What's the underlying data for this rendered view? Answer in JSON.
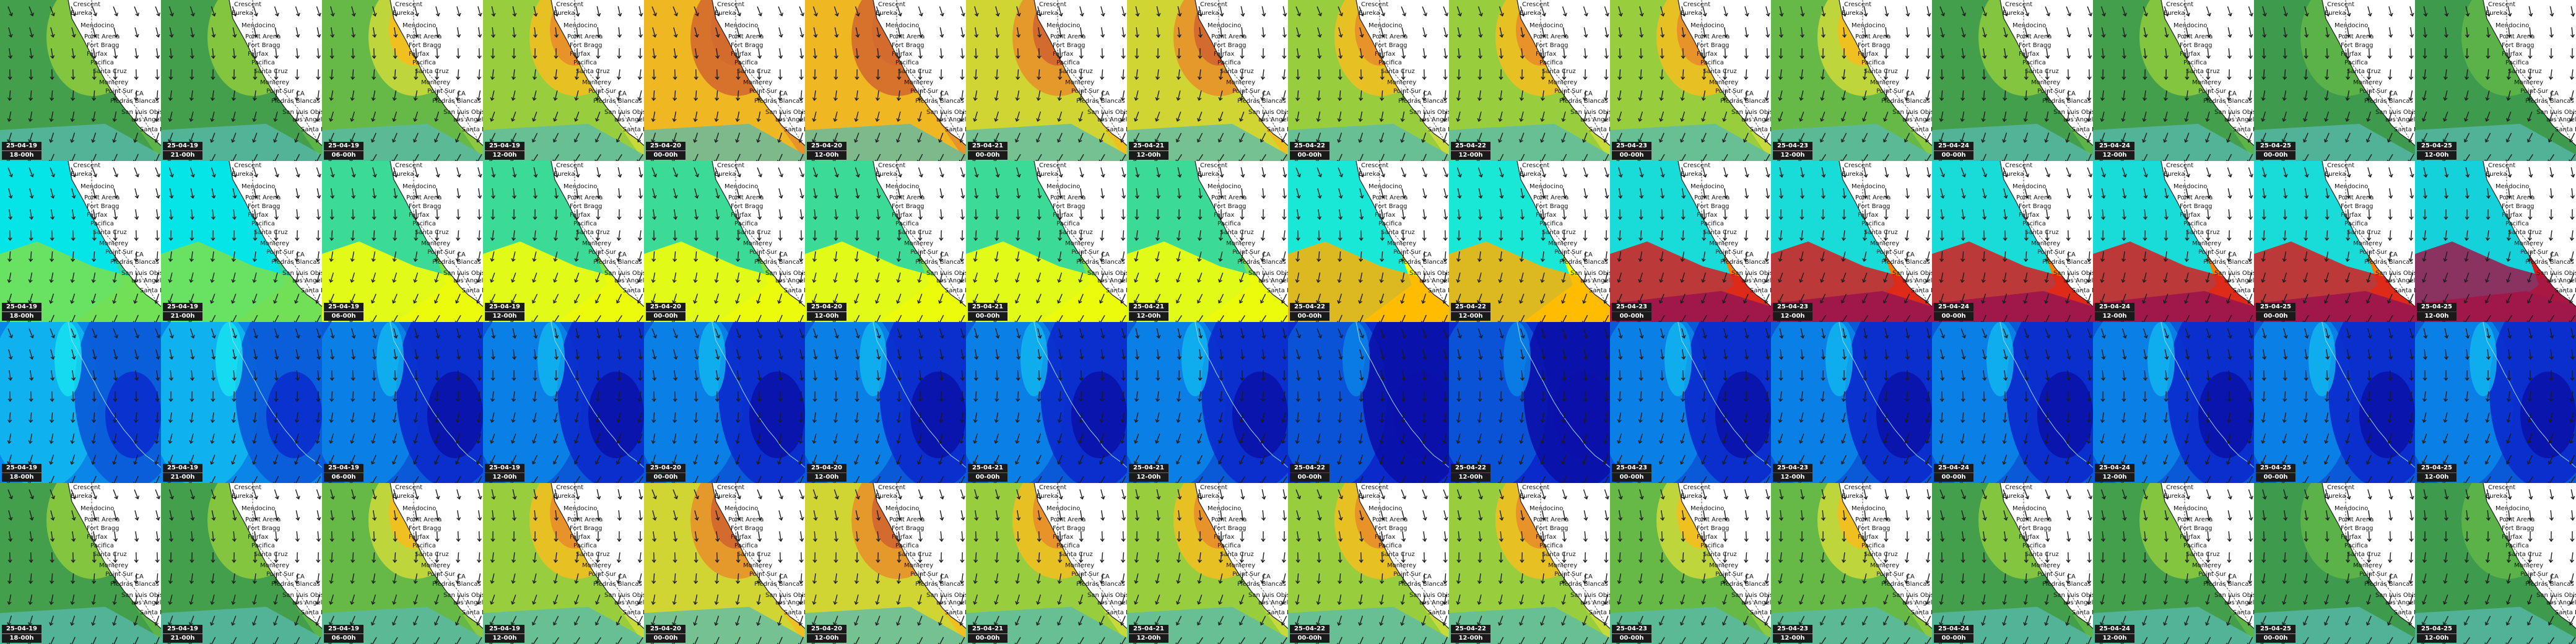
{
  "places": [
    "Crescent",
    "Eureka",
    "Mendocino",
    "Point Arena",
    "Fort Bragg",
    "Fairfax",
    "Pacifica",
    "Santa Cruz",
    "Monterey",
    "Point Sur",
    "Piedras Blancas",
    "San Luis Obispo",
    "CA",
    "Los Angeles",
    "Santa Barbara"
  ],
  "palettes": {
    "wind": [
      "#3e9a4e",
      "#5db548",
      "#8cc93f",
      "#c8d93a",
      "#f0c020",
      "#e8922a",
      "#d36a2e"
    ],
    "period": [
      "#00e5ee",
      "#35d9a0",
      "#7be04a",
      "#ffff00",
      "#ffb000",
      "#ff7a00",
      "#d81c1c",
      "#a0184a"
    ],
    "height": [
      "#18e6f0",
      "#10b8f0",
      "#0a86e8",
      "#0a5ad8",
      "#0a2acc",
      "#0a10a8"
    ]
  },
  "rows": [
    {
      "name": "wind",
      "frames": [
        {
          "date": "25-04-19",
          "time": "18-00h",
          "level": 1
        },
        {
          "date": "25-04-19",
          "time": "21-00h",
          "level": 1
        },
        {
          "date": "25-04-19",
          "time": "06-00h",
          "level": 2
        },
        {
          "date": "25-04-19",
          "time": "12-00h",
          "level": 3
        },
        {
          "date": "25-04-20",
          "time": "00-00h",
          "level": 5
        },
        {
          "date": "25-04-20",
          "time": "12-00h",
          "level": 5
        },
        {
          "date": "25-04-21",
          "time": "00-00h",
          "level": 4
        },
        {
          "date": "25-04-21",
          "time": "12-00h",
          "level": 4
        },
        {
          "date": "25-04-22",
          "time": "00-00h",
          "level": 3
        },
        {
          "date": "25-04-22",
          "time": "12-00h",
          "level": 3
        },
        {
          "date": "25-04-23",
          "time": "00-00h",
          "level": 3
        },
        {
          "date": "25-04-23",
          "time": "12-00h",
          "level": 2
        },
        {
          "date": "25-04-24",
          "time": "00-00h",
          "level": 1
        },
        {
          "date": "25-04-24",
          "time": "12-00h",
          "level": 1
        },
        {
          "date": "25-04-25",
          "time": "00-00h",
          "level": 0
        },
        {
          "date": "25-04-25",
          "time": "12-00h",
          "level": 0
        }
      ]
    },
    {
      "name": "period",
      "frames": [
        {
          "date": "25-04-19",
          "time": "18-00h",
          "level": 1
        },
        {
          "date": "25-04-19",
          "time": "21-00h",
          "level": 1
        },
        {
          "date": "25-04-19",
          "time": "06-00h",
          "level": 2
        },
        {
          "date": "25-04-19",
          "time": "12-00h",
          "level": 2
        },
        {
          "date": "25-04-20",
          "time": "00-00h",
          "level": 2
        },
        {
          "date": "25-04-20",
          "time": "12-00h",
          "level": 2
        },
        {
          "date": "25-04-21",
          "time": "00-00h",
          "level": 2
        },
        {
          "date": "25-04-21",
          "time": "12-00h",
          "level": 2
        },
        {
          "date": "25-04-22",
          "time": "00-00h",
          "level": 3
        },
        {
          "date": "25-04-22",
          "time": "12-00h",
          "level": 3
        },
        {
          "date": "25-04-23",
          "time": "00-00h",
          "level": 5
        },
        {
          "date": "25-04-23",
          "time": "12-00h",
          "level": 5
        },
        {
          "date": "25-04-24",
          "time": "00-00h",
          "level": 5
        },
        {
          "date": "25-04-24",
          "time": "12-00h",
          "level": 5
        },
        {
          "date": "25-04-25",
          "time": "00-00h",
          "level": 5
        },
        {
          "date": "25-04-25",
          "time": "12-00h",
          "level": 6
        }
      ]
    },
    {
      "name": "height",
      "frames": [
        {
          "date": "25-04-19",
          "time": "18-00h",
          "level": 2
        },
        {
          "date": "25-04-19",
          "time": "21-00h",
          "level": 2
        },
        {
          "date": "25-04-19",
          "time": "06-00h",
          "level": 3
        },
        {
          "date": "25-04-19",
          "time": "12-00h",
          "level": 3
        },
        {
          "date": "25-04-20",
          "time": "00-00h",
          "level": 3
        },
        {
          "date": "25-04-20",
          "time": "12-00h",
          "level": 3
        },
        {
          "date": "25-04-21",
          "time": "00-00h",
          "level": 3
        },
        {
          "date": "25-04-21",
          "time": "12-00h",
          "level": 3
        },
        {
          "date": "25-04-22",
          "time": "00-00h",
          "level": 4
        },
        {
          "date": "25-04-22",
          "time": "12-00h",
          "level": 4
        },
        {
          "date": "25-04-23",
          "time": "00-00h",
          "level": 3
        },
        {
          "date": "25-04-23",
          "time": "12-00h",
          "level": 3
        },
        {
          "date": "25-04-24",
          "time": "00-00h",
          "level": 3
        },
        {
          "date": "25-04-24",
          "time": "12-00h",
          "level": 3
        },
        {
          "date": "25-04-25",
          "time": "00-00h",
          "level": 3
        },
        {
          "date": "25-04-25",
          "time": "12-00h",
          "level": 3
        }
      ]
    },
    {
      "name": "wind",
      "frames": [
        {
          "date": "25-04-19",
          "time": "18-00h",
          "level": 1
        },
        {
          "date": "25-04-19",
          "time": "21-00h",
          "level": 1
        },
        {
          "date": "25-04-19",
          "time": "06-00h",
          "level": 2
        },
        {
          "date": "25-04-19",
          "time": "12-00h",
          "level": 3
        },
        {
          "date": "25-04-20",
          "time": "00-00h",
          "level": 4
        },
        {
          "date": "25-04-20",
          "time": "12-00h",
          "level": 4
        },
        {
          "date": "25-04-21",
          "time": "00-00h",
          "level": 3
        },
        {
          "date": "25-04-21",
          "time": "12-00h",
          "level": 3
        },
        {
          "date": "25-04-22",
          "time": "00-00h",
          "level": 3
        },
        {
          "date": "25-04-22",
          "time": "12-00h",
          "level": 3
        },
        {
          "date": "25-04-23",
          "time": "00-00h",
          "level": 2
        },
        {
          "date": "25-04-23",
          "time": "12-00h",
          "level": 2
        },
        {
          "date": "25-04-24",
          "time": "00-00h",
          "level": 1
        },
        {
          "date": "25-04-24",
          "time": "12-00h",
          "level": 1
        },
        {
          "date": "25-04-25",
          "time": "00-00h",
          "level": 0
        },
        {
          "date": "25-04-25",
          "time": "12-00h",
          "level": 0
        }
      ]
    }
  ]
}
